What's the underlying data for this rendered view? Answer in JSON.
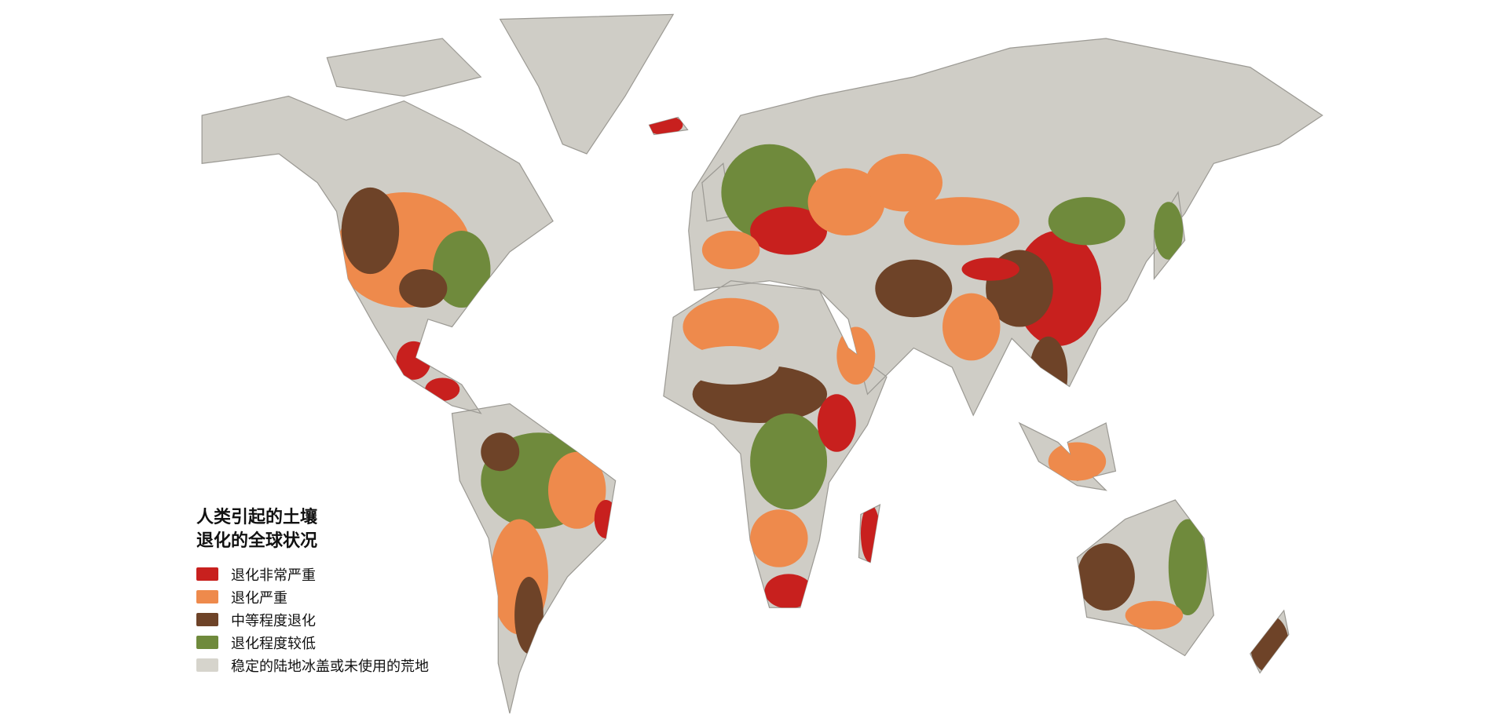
{
  "legend": {
    "title_line1": "人类引起的土壤",
    "title_line2": "退化的全球状况",
    "items": [
      {
        "label": "退化非常严重",
        "color": "#c8201e"
      },
      {
        "label": "退化严重",
        "color": "#ee8a4c"
      },
      {
        "label": "中等程度退化",
        "color": "#6e4328"
      },
      {
        "label": "退化程度较低",
        "color": "#6f8a3c"
      },
      {
        "label": "稳定的陆地冰盖或未使用的荒地",
        "color": "#d6d4cc"
      }
    ]
  },
  "colors": {
    "land_unused": "#cfcdc6",
    "ocean": "#ffffff",
    "borders": "#8a8a84"
  }
}
